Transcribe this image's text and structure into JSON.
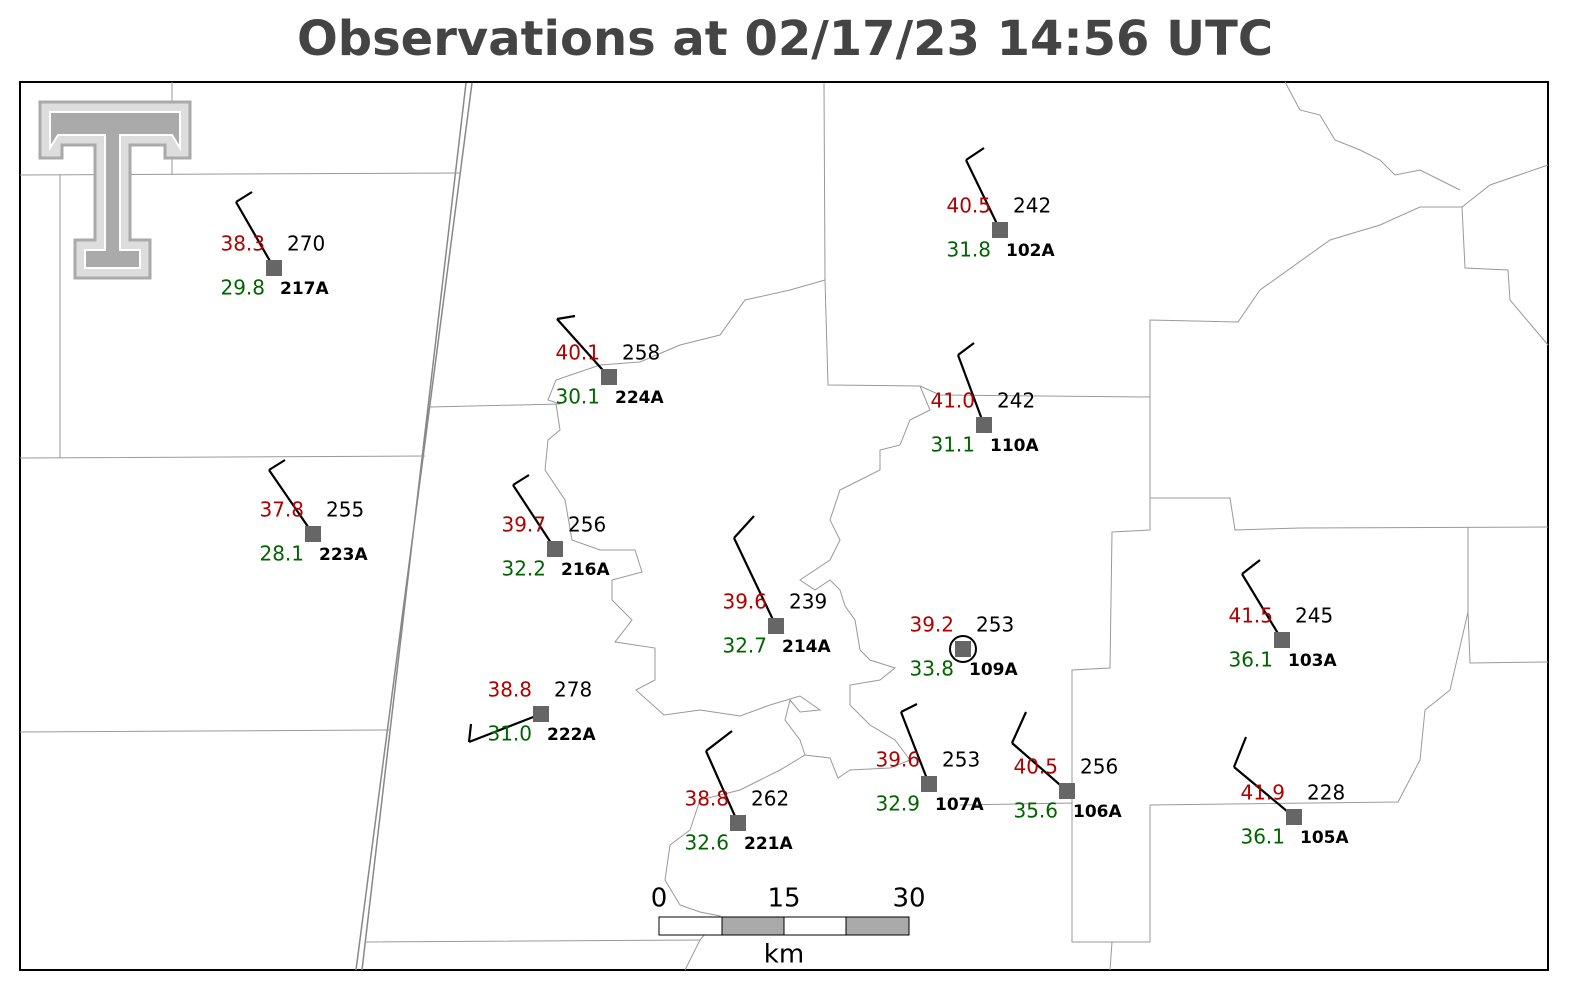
{
  "title": "Observations at 02/17/23 14:56 UTC",
  "stations": [
    {
      "id": "217A",
      "temperature": "38.3",
      "dewpoint": "29.8",
      "value": "270"
    },
    {
      "id": "224A",
      "temperature": "40.1",
      "dewpoint": "30.1",
      "value": "258"
    },
    {
      "id": "223A",
      "temperature": "37.8",
      "dewpoint": "28.1",
      "value": "255"
    },
    {
      "id": "216A",
      "temperature": "39.7",
      "dewpoint": "32.2",
      "value": "256"
    },
    {
      "id": "222A",
      "temperature": "38.8",
      "dewpoint": "31.0",
      "value": "278"
    },
    {
      "id": "221A",
      "temperature": "38.8",
      "dewpoint": "32.6",
      "value": "262"
    },
    {
      "id": "214A",
      "temperature": "39.6",
      "dewpoint": "32.7",
      "value": "239"
    },
    {
      "id": "109A",
      "temperature": "39.2",
      "dewpoint": "33.8",
      "value": "253"
    },
    {
      "id": "107A",
      "temperature": "39.6",
      "dewpoint": "32.9",
      "value": "253"
    },
    {
      "id": "106A",
      "temperature": "40.5",
      "dewpoint": "35.6",
      "value": "256"
    },
    {
      "id": "110A",
      "temperature": "41.0",
      "dewpoint": "31.1",
      "value": "242"
    },
    {
      "id": "102A",
      "temperature": "40.5",
      "dewpoint": "31.8",
      "value": "242"
    },
    {
      "id": "103A",
      "temperature": "41.5",
      "dewpoint": "36.1",
      "value": "245"
    },
    {
      "id": "105A",
      "temperature": "41.9",
      "dewpoint": "36.1",
      "value": "228"
    }
  ],
  "scale_bar": {
    "ticks": [
      "0",
      "15",
      "30"
    ],
    "unit": "km"
  }
}
